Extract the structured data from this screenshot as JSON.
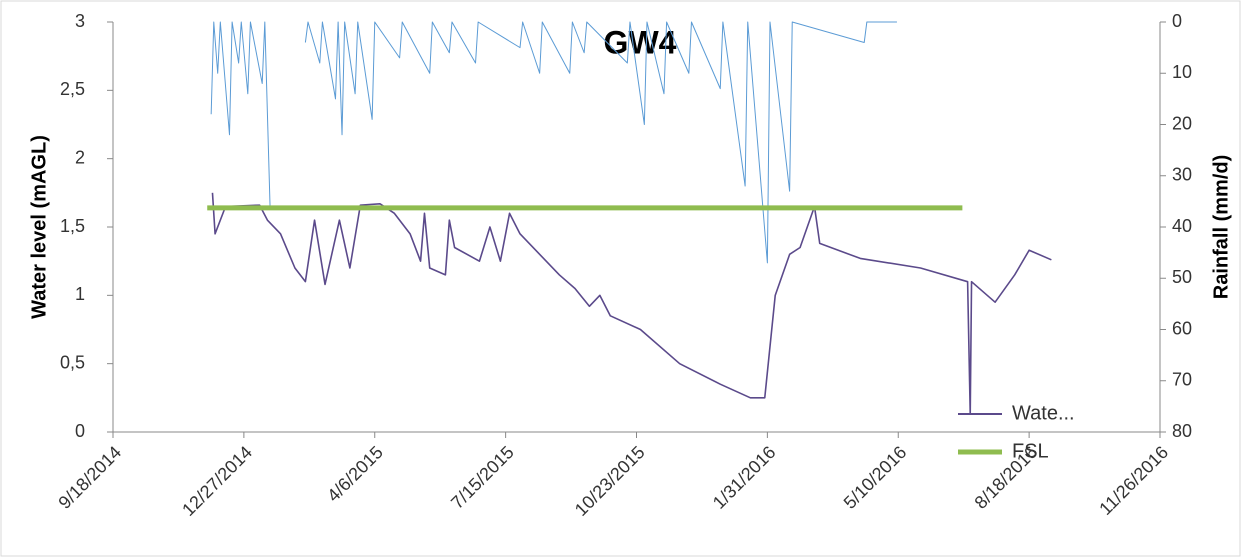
{
  "chart_data": {
    "type": "line",
    "title": "GW4",
    "y_label": "Water level (mAGL)",
    "y2_label": "Rainfall (mm/d)",
    "xlim": [
      "9/18/2014",
      "11/26/2016"
    ],
    "xticks": [
      "9/18/2014",
      "12/27/2014",
      "4/6/2015",
      "7/15/2015",
      "10/23/2015",
      "1/31/2016",
      "5/10/2016",
      "8/18/2016",
      "11/26/2016"
    ],
    "ylim": [
      0,
      3
    ],
    "yticks": [
      0,
      {
        "value": 0.5,
        "label": "0,5"
      },
      1,
      {
        "value": 1.5,
        "label": "1,5"
      },
      2,
      {
        "value": 2.5,
        "label": "2,5"
      },
      3
    ],
    "y2lim": [
      0,
      80
    ],
    "y2ticks": [
      0,
      10,
      20,
      30,
      40,
      50,
      60,
      70,
      80
    ],
    "y2_inverted": true,
    "legend": "bottom right",
    "series": [
      {
        "color": "#5b9bd5",
        "axis": "y2",
        "width": 1,
        "x": [
          "12/2/2014",
          "12/4/2014",
          "12/7/2014",
          "12/9/2014",
          "12/16/2014",
          "12/18/2014",
          "12/23/2014",
          "12/25/2014",
          "12/30/2014",
          "1/1/2015",
          "1/10/2015",
          "1/12/2015",
          "1/16/2015",
          "1/26/2015",
          "2/12/2015",
          "2/14/2015",
          "2/23/2015",
          "2/25/2015",
          "3/7/2015",
          "3/9/2015",
          "3/12/2015",
          "3/14/2015",
          "3/22/2015",
          "3/24/2015",
          "4/4/2015",
          "4/6/2015",
          "4/25/2015",
          "4/27/2015",
          "5/18/2015",
          "5/20/2015",
          "6/2/2015",
          "6/4/2015",
          "6/22/2015",
          "6/24/2015",
          "7/26/2015",
          "7/28/2015",
          "8/10/2015",
          "8/12/2015",
          "9/2/2015",
          "9/4/2015",
          "9/13/2015",
          "9/15/2015",
          "10/16/2015",
          "10/18/2015",
          "10/29/2015",
          "10/31/2015",
          "11/13/2015",
          "11/15/2015",
          "12/2/2015",
          "12/4/2015",
          "12/26/2015",
          "12/28/2015",
          "1/14/2016",
          "1/16/2016",
          "1/31/2016",
          "2/2/2016",
          "2/17/2016",
          "2/19/2016",
          "4/14/2016",
          "4/16/2016",
          "5/9/2016"
        ],
        "values": [
          18,
          0,
          10,
          0,
          22,
          0,
          8,
          0,
          14,
          0,
          12,
          0,
          36,
          null,
          4,
          0,
          8,
          0,
          15,
          0,
          22,
          0,
          14,
          0,
          19,
          0,
          7,
          0,
          10,
          0,
          6,
          0,
          8,
          0,
          5,
          0,
          10,
          0,
          10,
          0,
          6,
          0,
          8,
          0,
          20,
          0,
          14,
          0,
          10,
          0,
          13,
          0,
          32,
          0,
          47,
          0,
          33,
          0,
          4,
          0,
          0
        ]
      },
      {
        "name": "Wate...",
        "color": "#5b4a8b",
        "width": 1.6,
        "x": [
          "12/3/2014",
          "12/5/2014",
          "12/13/2014",
          "1/8/2015",
          "1/14/2015",
          "1/24/2015",
          "2/4/2015",
          "2/12/2015",
          "2/19/2015",
          "2/27/2015",
          "3/10/2015",
          "3/18/2015",
          "3/26/2015",
          "4/10/2015",
          "4/21/2015",
          "5/3/2015",
          "5/11/2015",
          "5/14/2015",
          "5/18/2015",
          "5/30/2015",
          "6/2/2015",
          "6/6/2015",
          "6/25/2015",
          "7/3/2015",
          "7/11/2015",
          "7/18/2015",
          "7/26/2015",
          "8/25/2015",
          "9/6/2015",
          "9/17/2015",
          "9/25/2015",
          "10/3/2015",
          "10/26/2015",
          "11/25/2015",
          "12/26/2015",
          "1/18/2016",
          "1/29/2016",
          "2/6/2016",
          "2/17/2016",
          "2/25/2016",
          "3/7/2016",
          "3/11/2016",
          "4/11/2016",
          "5/27/2016",
          "7/2/2016",
          "7/4/2016",
          "7/5/2016",
          "7/23/2016",
          "8/7/2016",
          "8/18/2016",
          "9/4/2016"
        ],
        "values": [
          1.75,
          1.45,
          1.65,
          1.66,
          1.55,
          1.45,
          1.2,
          1.1,
          1.55,
          1.08,
          1.55,
          1.2,
          1.66,
          1.67,
          1.6,
          1.45,
          1.25,
          1.6,
          1.2,
          1.15,
          1.55,
          1.35,
          1.25,
          1.5,
          1.25,
          1.6,
          1.45,
          1.15,
          1.05,
          0.92,
          1.0,
          0.85,
          0.75,
          0.5,
          0.35,
          0.25,
          0.25,
          1.0,
          1.3,
          1.35,
          1.65,
          1.38,
          1.27,
          1.2,
          1.1,
          0.13,
          1.1,
          0.95,
          1.15,
          1.33,
          1.26
        ]
      },
      {
        "name": "FSL",
        "color": "#8fbc4f",
        "width": 5,
        "x": [
          "11/29/2014",
          "6/28/2016"
        ],
        "values": [
          1.64,
          1.64
        ]
      }
    ]
  }
}
